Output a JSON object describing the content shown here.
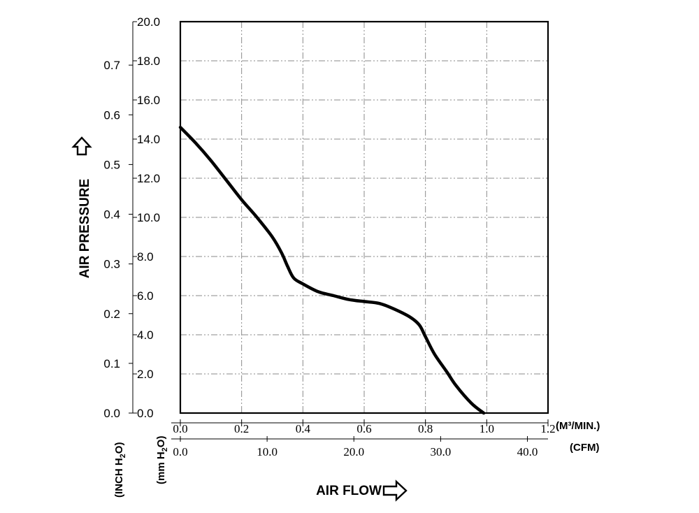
{
  "chart_data": {
    "type": "line",
    "title": "",
    "ylabel": "AIR PRESSURE",
    "xlabel": "AIR FLOW",
    "x_unit_primary": "(M³/MIN.)",
    "x_unit_secondary": "(CFM)",
    "y_unit_left": "(INCH H2O)",
    "y_unit_left_base": "(INCH H",
    "y_unit_left_sub": "2",
    "y_unit_left_tail": "O)",
    "y_unit_mid": "(mm H2O)",
    "y_unit_mid_base": "(mm H",
    "y_unit_mid_sub": "2",
    "y_unit_mid_tail": "O)",
    "xlim": [
      0,
      1.2
    ],
    "ylim": [
      0,
      20
    ],
    "x_ticks_m3min": [
      "0.0",
      "0.2",
      "0.4",
      "0.6",
      "0.8",
      "1.0",
      "1.2"
    ],
    "x_ticks_cfm": [
      "0.0",
      "10.0",
      "20.0",
      "30.0",
      "40.0"
    ],
    "x_ticks_cfm_values": [
      0,
      10,
      20,
      30,
      40
    ],
    "y_ticks_mm": [
      "0.0",
      "2.0",
      "4.0",
      "6.0",
      "8.0",
      "10.0",
      "12.0",
      "14.0",
      "16.0",
      "18.0",
      "20.0"
    ],
    "y_ticks_inch": [
      "0.0",
      "0.1",
      "0.2",
      "0.3",
      "0.4",
      "0.5",
      "0.6",
      "0.7"
    ],
    "y_ticks_inch_values": [
      0,
      0.1,
      0.2,
      0.3,
      0.4,
      0.5,
      0.6,
      0.7
    ],
    "grid": true,
    "series": [
      {
        "color": "#000000",
        "x": [
          0.0,
          0.05,
          0.1,
          0.15,
          0.2,
          0.25,
          0.3,
          0.33,
          0.35,
          0.37,
          0.4,
          0.45,
          0.5,
          0.55,
          0.6,
          0.65,
          0.7,
          0.75,
          0.78,
          0.8,
          0.83,
          0.87,
          0.9,
          0.95,
          0.99
        ],
        "y": [
          14.6,
          13.8,
          12.9,
          11.9,
          10.9,
          10.0,
          9.0,
          8.2,
          7.5,
          6.9,
          6.6,
          6.2,
          6.0,
          5.8,
          5.7,
          5.6,
          5.3,
          4.9,
          4.5,
          3.9,
          3.0,
          2.1,
          1.4,
          0.5,
          0.0
        ]
      }
    ]
  }
}
